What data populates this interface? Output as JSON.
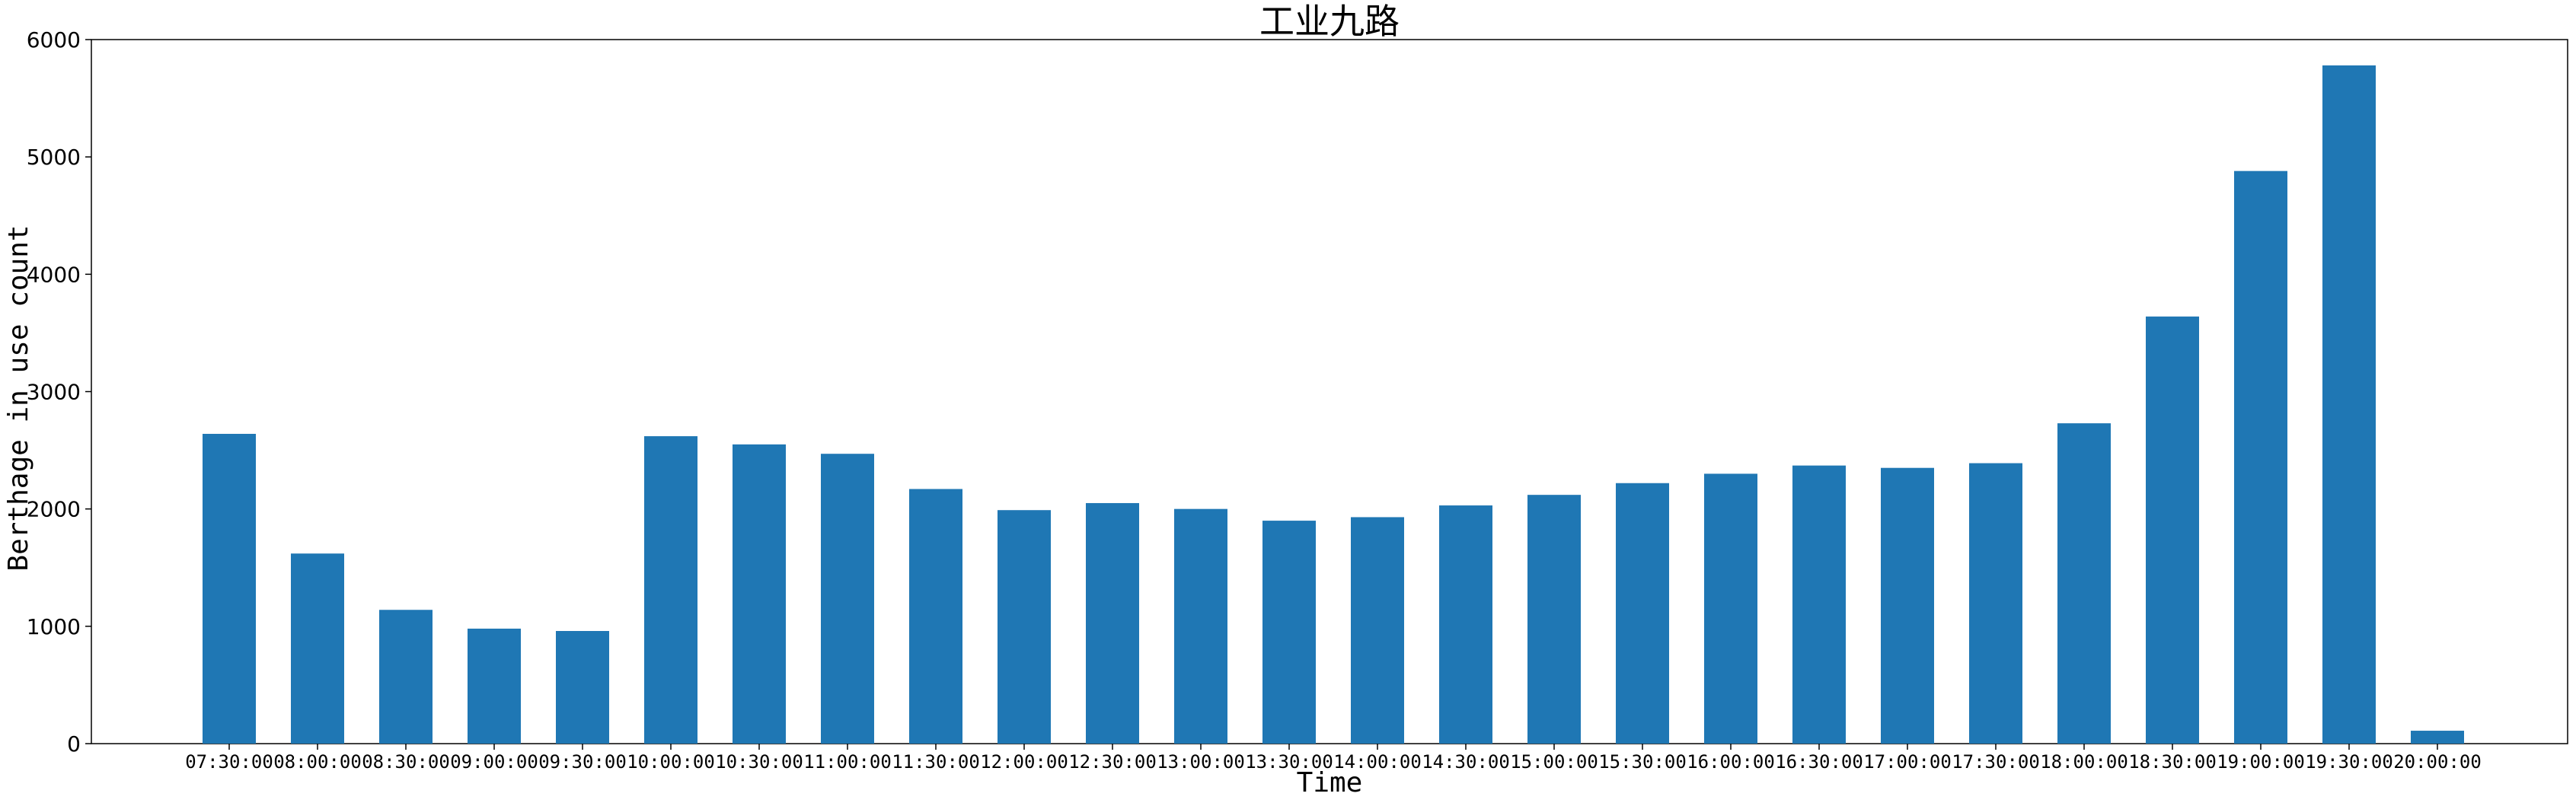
{
  "chart_data": {
    "type": "bar",
    "title": "工业九路",
    "xlabel": "Time",
    "ylabel": "Berthage in use count",
    "ylim": [
      0,
      6000
    ],
    "yticks": [
      0,
      1000,
      2000,
      3000,
      4000,
      5000,
      6000
    ],
    "grid": false,
    "bar_color": "#1f77b4",
    "categories": [
      "07:30:00",
      "08:00:00",
      "08:30:00",
      "09:00:00",
      "09:30:00",
      "10:00:00",
      "10:30:00",
      "11:00:00",
      "11:30:00",
      "12:00:00",
      "12:30:00",
      "13:00:00",
      "13:30:00",
      "14:00:00",
      "14:30:00",
      "15:00:00",
      "15:30:00",
      "16:00:00",
      "16:30:00",
      "17:00:00",
      "17:30:00",
      "18:00:00",
      "18:30:00",
      "19:00:00",
      "19:30:00",
      "20:00:00"
    ],
    "values": [
      2640,
      1620,
      1140,
      980,
      960,
      2620,
      2550,
      2470,
      2170,
      1990,
      2050,
      2000,
      1900,
      1930,
      2030,
      2120,
      2220,
      2300,
      2370,
      2350,
      2390,
      2730,
      3640,
      4880,
      5780,
      110
    ]
  }
}
